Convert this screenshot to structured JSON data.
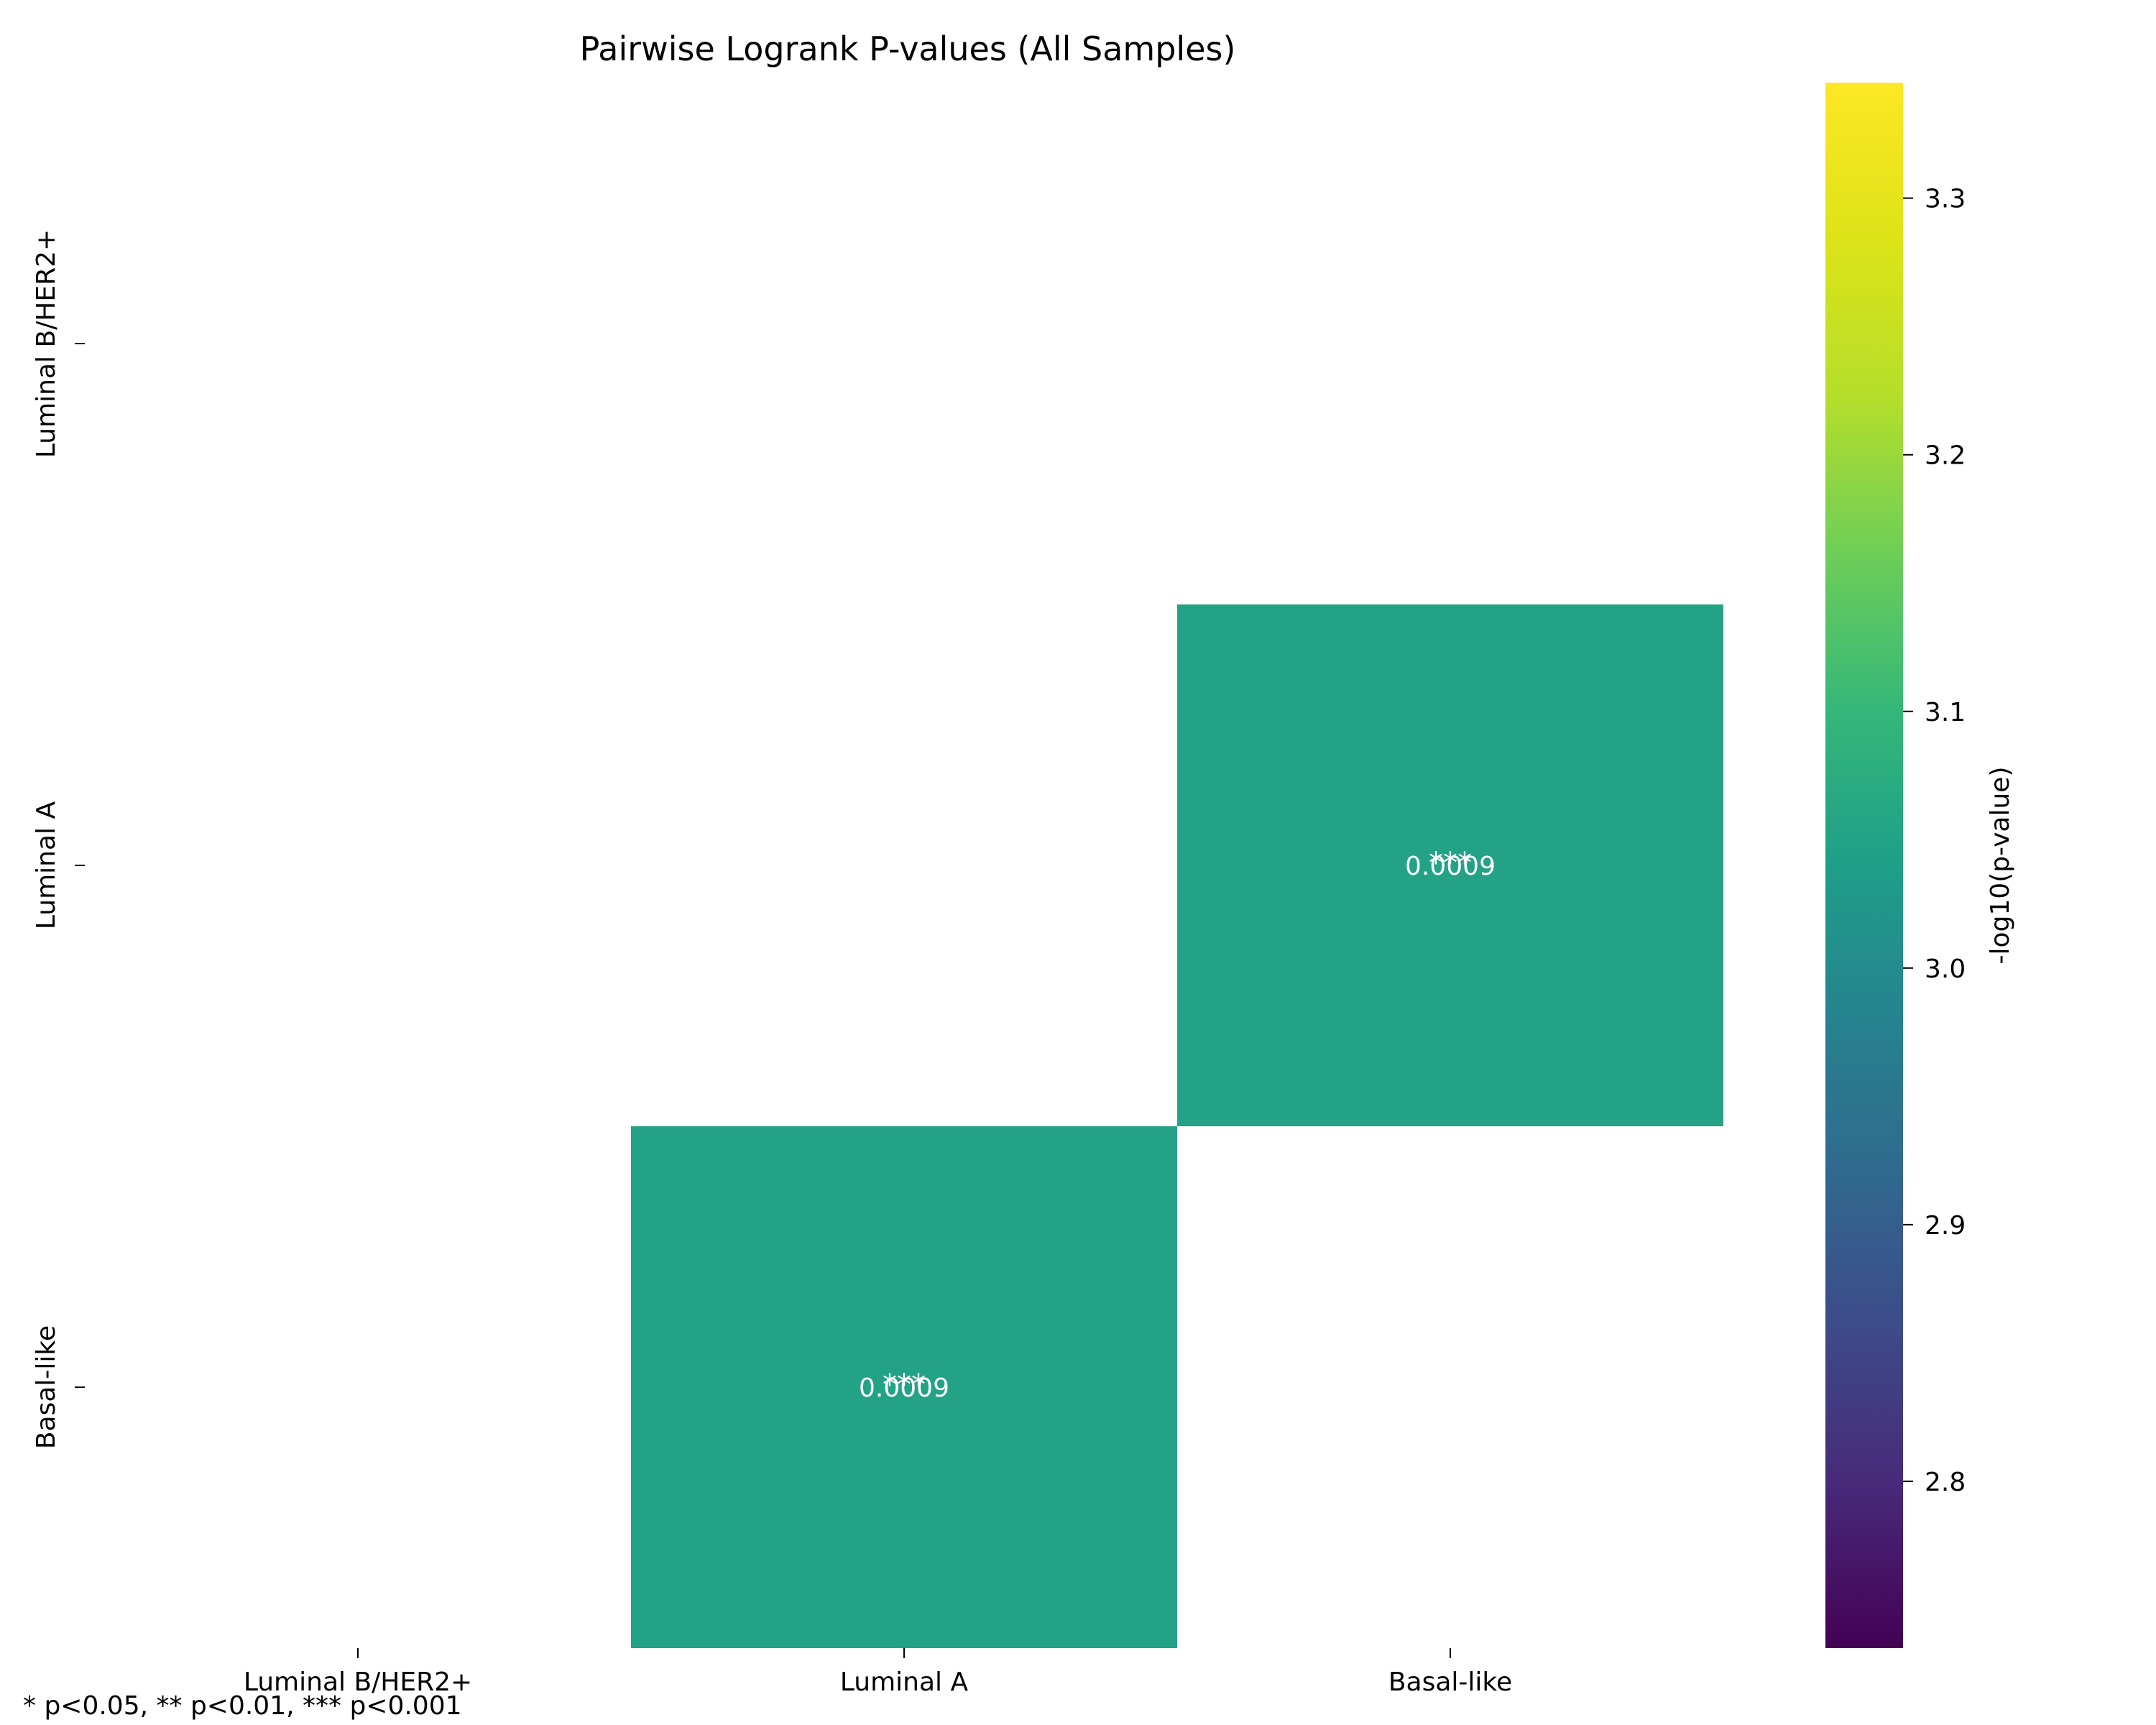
{
  "chart_data": {
    "type": "heatmap",
    "title": "Pairwise Logrank P-values (All Samples)",
    "rows": [
      "Luminal B/HER2+",
      "Luminal A",
      "Basal-like"
    ],
    "columns": [
      "Luminal B/HER2+",
      "Luminal A",
      "Basal-like"
    ],
    "cells": [
      {
        "row": 1,
        "col": 2,
        "p_value": 0.0009,
        "neg_log10_p": 3.05,
        "label": "0.0009",
        "stars": "***"
      },
      {
        "row": 2,
        "col": 1,
        "p_value": 0.0009,
        "neg_log10_p": 3.05,
        "label": "0.0009",
        "stars": "***"
      }
    ],
    "colorbar": {
      "label": "-log10(p-value)",
      "colormap": "viridis",
      "range": [
        2.735,
        3.345
      ],
      "ticks": [
        "2.8",
        "2.9",
        "3.0",
        "3.1",
        "3.2",
        "3.3"
      ],
      "tick_values": [
        2.8,
        2.9,
        3.0,
        3.1,
        3.2,
        3.3
      ]
    },
    "cell_text_color": "#ffffff",
    "footnote": "* p<0.05, ** p<0.01, *** p<0.001"
  }
}
